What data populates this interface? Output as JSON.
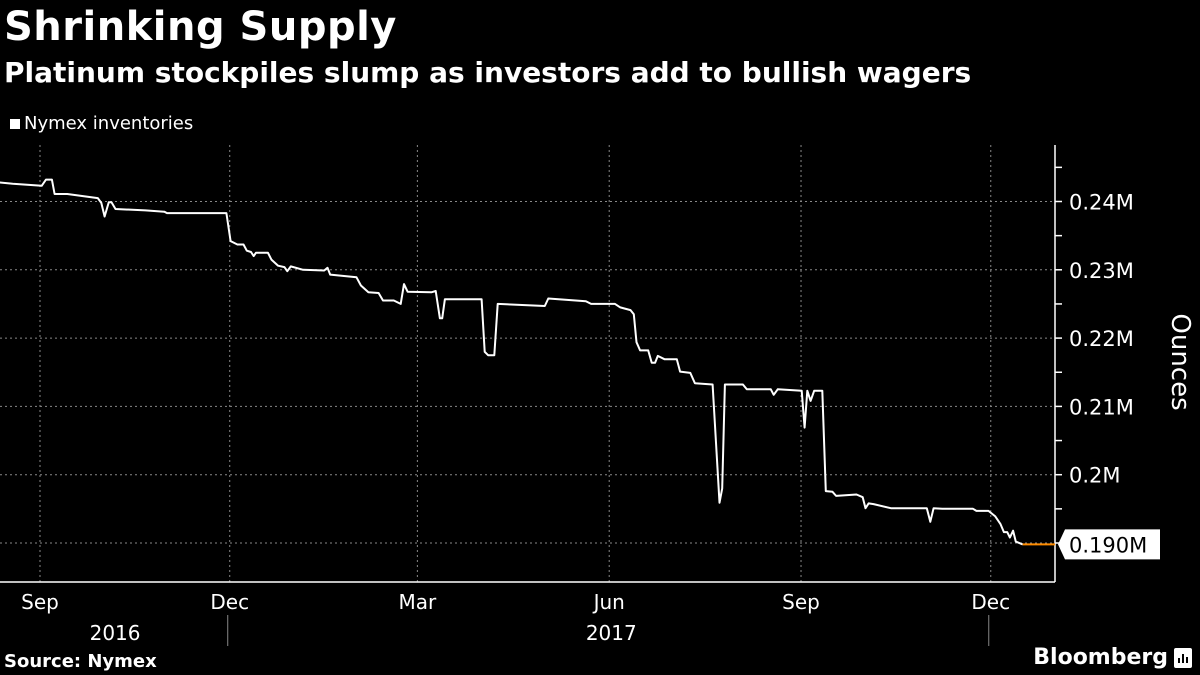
{
  "title": "Shrinking Supply",
  "subtitle": "Platinum stockpiles slump as investors add to bullish wagers",
  "source": "Source: Nymex",
  "brand": "Bloomberg",
  "colors": {
    "line": "#ffffff",
    "last_marker": "#ff8c00",
    "background": "#000000",
    "grid": "#888888"
  },
  "chart_data": {
    "type": "line",
    "title": "Shrinking Supply",
    "xlabel": "",
    "ylabel": "Ounces",
    "x_unit": "days since 2016-09-01",
    "ylim": [
      0.185,
      0.249
    ],
    "y_ticks": [
      0.19,
      0.2,
      0.21,
      0.22,
      0.23,
      0.24
    ],
    "y_tick_labels": [
      "0.19M",
      "0.2M",
      "0.21M",
      "0.22M",
      "0.23M",
      "0.24M"
    ],
    "x_ticks": [
      0,
      91,
      181,
      273,
      365,
      456
    ],
    "x_tick_labels": [
      "Sep",
      "Dec",
      "Mar",
      "Jun",
      "Sep",
      "Dec"
    ],
    "year_labels": [
      {
        "label": "2016",
        "day": 36
      },
      {
        "label": "2017",
        "day": 274
      }
    ],
    "year_boundaries": [
      91,
      456
    ],
    "grid": true,
    "legend": {
      "position": "top-left",
      "entries": [
        "Nymex inventories"
      ]
    },
    "last_value_label": "0.190M",
    "series": [
      {
        "name": "Nymex inventories",
        "x": [
          -19.6,
          -13.1,
          0.8,
          2.9,
          5.7,
          7.0,
          13.1,
          27.7,
          29.4,
          31.0,
          33.0,
          34.3,
          36.2,
          50.6,
          59.6,
          60.9,
          89.4,
          91.4,
          94.7,
          97.6,
          99.2,
          101.2,
          102.5,
          103.6,
          109.3,
          111.0,
          114.2,
          117.2,
          118.6,
          120.3,
          126.2,
          136.3,
          137.9,
          139.2,
          151.8,
          153.9,
          157.5,
          162.4,
          164.5,
          169.7,
          173.0,
          174.6,
          176.3,
          187.7,
          189.8,
          191.8,
          192.9,
          194.2,
          211.8,
          213.3,
          214.9,
          217.9,
          219.5,
          242.1,
          243.8,
          261.8,
          264.3,
          275.8,
          278.3,
          283.2,
          284.8,
          286.1,
          287.8,
          291.7,
          293.4,
          295.0,
          296.3,
          299.6,
          305.4,
          307.0,
          311.9,
          314.1,
          322.6,
          325.9,
          327.2,
          328.5,
          337.1,
          339.0,
          350.5,
          351.9,
          353.8,
          365.3,
          366.7,
          368.0,
          369.6,
          371.3,
          375.2,
          376.9,
          380.1,
          381.8,
          391.6,
          394.6,
          395.9,
          397.4,
          399.8,
          408.1,
          425.3,
          427.0,
          428.6,
          432.7,
          447.5,
          449.1,
          454.9,
          458.2,
          460.6,
          462.3,
          463.9,
          465.2,
          466.7,
          468.0,
          471.3
        ],
        "values": [
          0.2428,
          0.2426,
          0.2423,
          0.2432,
          0.2432,
          0.2411,
          0.2411,
          0.2405,
          0.2398,
          0.2378,
          0.2399,
          0.2399,
          0.2389,
          0.2387,
          0.2385,
          0.2383,
          0.2383,
          0.2342,
          0.2337,
          0.2337,
          0.2328,
          0.2326,
          0.232,
          0.2325,
          0.2325,
          0.2315,
          0.2306,
          0.2304,
          0.2298,
          0.2305,
          0.23,
          0.2299,
          0.2303,
          0.2293,
          0.2289,
          0.2277,
          0.2267,
          0.2266,
          0.2255,
          0.2255,
          0.225,
          0.2279,
          0.2268,
          0.2267,
          0.2269,
          0.2229,
          0.2229,
          0.2257,
          0.2257,
          0.218,
          0.2175,
          0.2175,
          0.225,
          0.2247,
          0.2258,
          0.2254,
          0.225,
          0.225,
          0.2245,
          0.2241,
          0.2235,
          0.2194,
          0.2182,
          0.2182,
          0.2164,
          0.2164,
          0.2174,
          0.2169,
          0.2169,
          0.2151,
          0.2149,
          0.2134,
          0.2132,
          0.1959,
          0.198,
          0.2132,
          0.2132,
          0.2125,
          0.2125,
          0.2117,
          0.2125,
          0.2123,
          0.2069,
          0.2123,
          0.2108,
          0.2123,
          0.2123,
          0.1976,
          0.1975,
          0.1969,
          0.1971,
          0.1967,
          0.1951,
          0.1958,
          0.1957,
          0.1951,
          0.1951,
          0.1931,
          0.1951,
          0.195,
          0.195,
          0.1947,
          0.1947,
          0.1939,
          0.1928,
          0.1916,
          0.1916,
          0.1908,
          0.1918,
          0.1902,
          0.1898
        ]
      }
    ]
  }
}
